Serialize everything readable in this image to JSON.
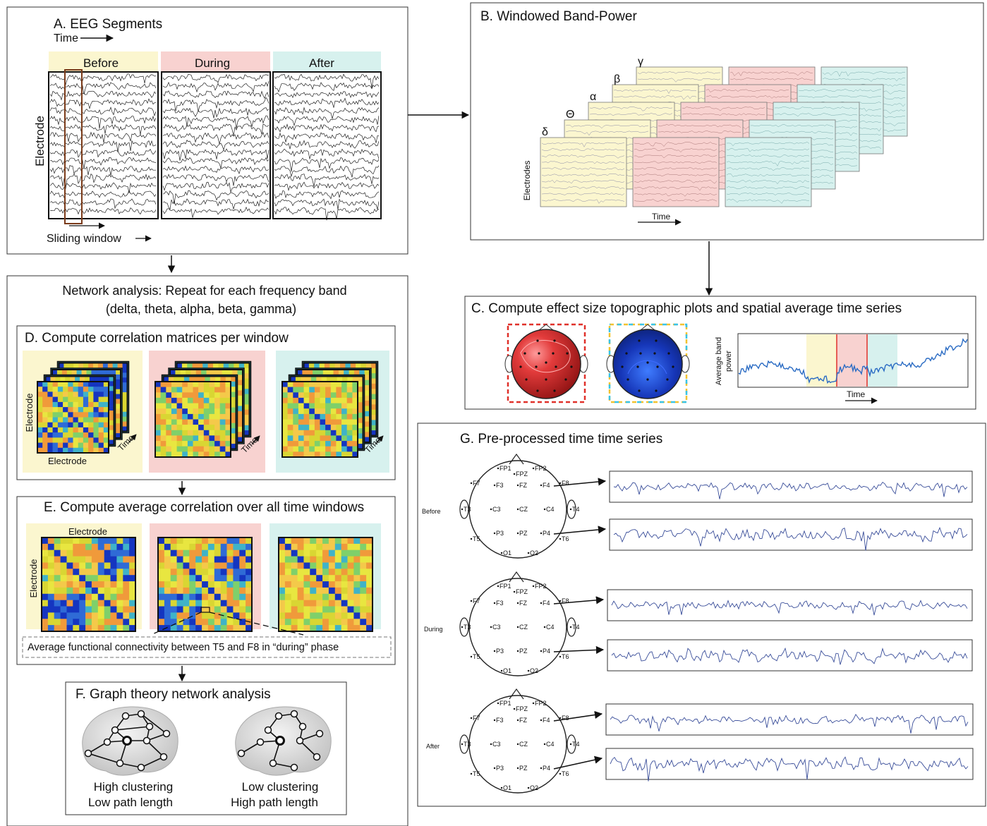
{
  "colors": {
    "before": "#fbf6cf",
    "during": "#f8d2d0",
    "after": "#d7f1ee",
    "window_box": "#7a3b1a",
    "sliding_text": "#6b3210",
    "line_blue": "#2b6cc4",
    "dash_red": "#e0312a",
    "dash_yellow": "#f2c230",
    "dash_cyan": "#39c4e8"
  },
  "phases": [
    "Before",
    "During",
    "After"
  ],
  "panel_a": {
    "title": "A. EEG Segments",
    "time_label": "Time",
    "y_label": "Electrode",
    "sliding_label": "Sliding window"
  },
  "panel_b": {
    "title": "B. Windowed Band-Power",
    "bands": [
      "δ",
      "Θ",
      "α",
      "β",
      "γ"
    ],
    "y_label": "Electrodes",
    "x_label": "Time"
  },
  "panel_c": {
    "title": "C. Compute effect size topographic plots and spatial average time series",
    "y_label_line1": "Average band",
    "y_label_line2": "power",
    "x_label": "Time"
  },
  "network": {
    "title_line1": "Network analysis: Repeat for each frequency band",
    "title_line2": "(delta, theta, alpha, beta, gamma)"
  },
  "panel_d": {
    "title": "D. Compute correlation matrices per window",
    "y_label": "Electrode",
    "x_label": "Electrode",
    "time_label": "Time"
  },
  "panel_e": {
    "title": "E. Compute average correlation over all time windows",
    "x_label": "Electrode",
    "y_label": "Electrode",
    "caption": "Average functional connectivity between T5 and F8 in “during” phase"
  },
  "panel_f": {
    "title": "F. Graph theory network analysis",
    "left_line1": "High clustering",
    "left_line2": "Low path length",
    "right_line1": "Low clustering",
    "right_line2": "High path length"
  },
  "panel_g": {
    "title": "G. Pre-processed time time series",
    "electrodes": [
      "FP1",
      "FP2",
      "FPZ",
      "F7",
      "F3",
      "FZ",
      "F4",
      "F8",
      "T3",
      "C3",
      "CZ",
      "C4",
      "T4",
      "P3",
      "PZ",
      "P4",
      "T5",
      "T6",
      "O1",
      "O2"
    ]
  }
}
